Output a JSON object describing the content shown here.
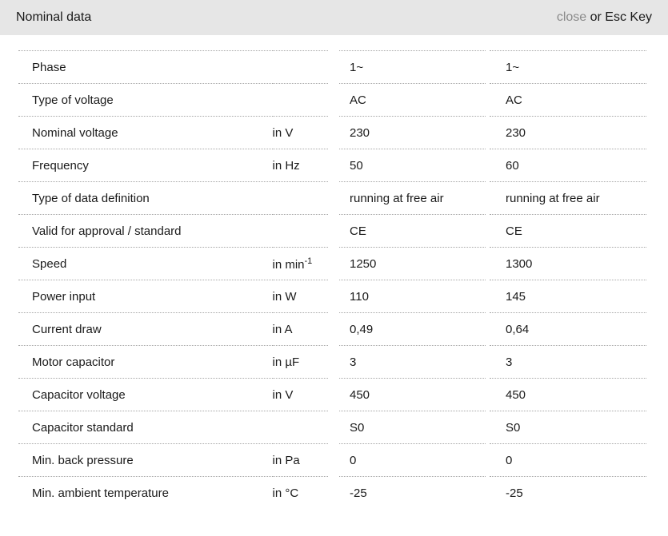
{
  "header": {
    "title": "Nominal data",
    "close_label": "close",
    "close_suffix": " or Esc Key"
  },
  "table": {
    "rows": [
      {
        "label": "Phase",
        "unit": "",
        "unit_sup": null,
        "values": [
          "1~",
          "1~"
        ]
      },
      {
        "label": "Type of voltage",
        "unit": "",
        "unit_sup": null,
        "values": [
          "AC",
          "AC"
        ]
      },
      {
        "label": "Nominal voltage",
        "unit": "in V",
        "unit_sup": null,
        "values": [
          "230",
          "230"
        ]
      },
      {
        "label": "Frequency",
        "unit": "in Hz",
        "unit_sup": null,
        "values": [
          "50",
          "60"
        ]
      },
      {
        "label": "Type of data definition",
        "unit": "",
        "unit_sup": null,
        "values": [
          "running at free air",
          "running at free air"
        ]
      },
      {
        "label": "Valid for approval / standard",
        "unit": "",
        "unit_sup": null,
        "values": [
          "CE",
          "CE"
        ]
      },
      {
        "label": "Speed",
        "unit": "in min",
        "unit_sup": "-1",
        "values": [
          "1250",
          "1300"
        ]
      },
      {
        "label": "Power input",
        "unit": "in W",
        "unit_sup": null,
        "values": [
          "110",
          "145"
        ]
      },
      {
        "label": "Current draw",
        "unit": "in A",
        "unit_sup": null,
        "values": [
          "0,49",
          "0,64"
        ]
      },
      {
        "label": "Motor capacitor",
        "unit": "in µF",
        "unit_sup": null,
        "values": [
          "3",
          "3"
        ]
      },
      {
        "label": "Capacitor voltage",
        "unit": "in V",
        "unit_sup": null,
        "values": [
          "450",
          "450"
        ]
      },
      {
        "label": "Capacitor standard",
        "unit": "",
        "unit_sup": null,
        "values": [
          "S0",
          "S0"
        ]
      },
      {
        "label": "Min. back pressure",
        "unit": "in Pa",
        "unit_sup": null,
        "values": [
          "0",
          "0"
        ]
      },
      {
        "label": "Min. ambient temperature",
        "unit": "in °C",
        "unit_sup": null,
        "values": [
          "-25",
          "-25"
        ]
      }
    ]
  },
  "colors": {
    "header_bg": "#e6e6e6",
    "text": "#1a1a1a",
    "close": "#8a8a8a",
    "border": "#a6a6a6"
  }
}
